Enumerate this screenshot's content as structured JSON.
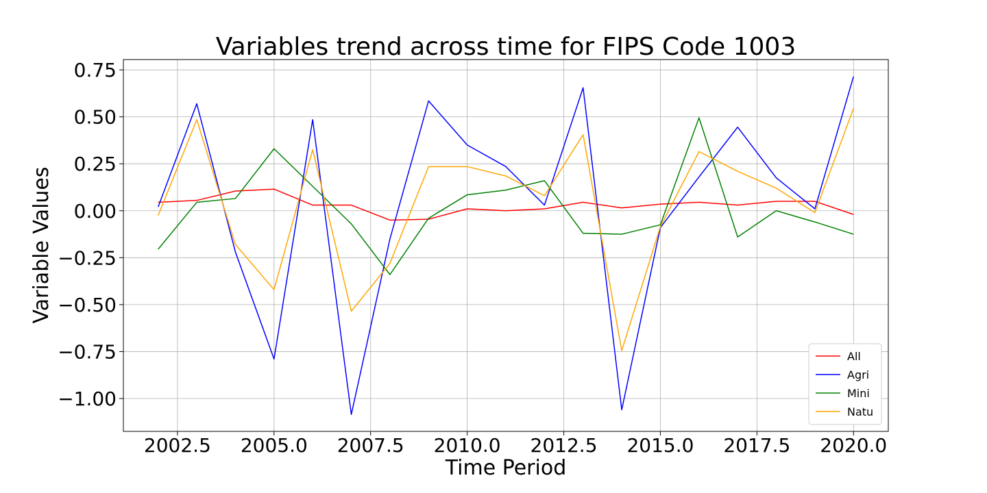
{
  "chart_data": {
    "type": "line",
    "title": "Variables trend across time for FIPS Code 1003",
    "xlabel": "Time Period",
    "ylabel": "Variable Values",
    "xlim": [
      2001.1,
      2020.9
    ],
    "ylim": [
      -1.175,
      0.805
    ],
    "xticks": [
      2002.5,
      2005.0,
      2007.5,
      2010.0,
      2012.5,
      2015.0,
      2017.5,
      2020.0
    ],
    "xtick_labels": [
      "2002.5",
      "2005.0",
      "2007.5",
      "2010.0",
      "2012.5",
      "2015.0",
      "2017.5",
      "2020.0"
    ],
    "yticks": [
      0.75,
      0.5,
      0.25,
      0.0,
      -0.25,
      -0.5,
      -0.75,
      -1.0
    ],
    "ytick_labels": [
      "0.75",
      "0.50",
      "0.25",
      "0.00",
      "−0.25",
      "−0.50",
      "−0.75",
      "−1.00"
    ],
    "grid": true,
    "legend_position": "bottom-right",
    "x": [
      2002,
      2003,
      2004,
      2005,
      2006,
      2007,
      2008,
      2009,
      2010,
      2011,
      2012,
      2013,
      2014,
      2015,
      2016,
      2017,
      2018,
      2019,
      2020
    ],
    "series": [
      {
        "name": "All",
        "color": "#ff0000",
        "values": [
          0.045,
          0.055,
          0.105,
          0.115,
          0.03,
          0.03,
          -0.05,
          -0.045,
          0.01,
          0.0,
          0.01,
          0.045,
          0.015,
          0.035,
          0.045,
          0.03,
          0.05,
          0.05,
          -0.02
        ]
      },
      {
        "name": "Agri",
        "color": "#0000ff",
        "values": [
          0.02,
          0.57,
          -0.22,
          -0.79,
          0.485,
          -1.085,
          -0.15,
          0.585,
          0.35,
          0.235,
          0.03,
          0.655,
          -1.06,
          -0.09,
          0.18,
          0.445,
          0.175,
          0.01,
          0.715
        ]
      },
      {
        "name": "Mini",
        "color": "#008000",
        "values": [
          -0.205,
          0.045,
          0.065,
          0.33,
          0.13,
          -0.07,
          -0.34,
          -0.04,
          0.085,
          0.11,
          0.16,
          -0.12,
          -0.125,
          -0.075,
          0.495,
          -0.14,
          0.0,
          -0.06,
          -0.125
        ]
      },
      {
        "name": "Natu",
        "color": "#ffa500",
        "values": [
          -0.025,
          0.485,
          -0.18,
          -0.42,
          0.325,
          -0.535,
          -0.28,
          0.235,
          0.235,
          0.185,
          0.08,
          0.405,
          -0.745,
          -0.085,
          0.315,
          0.21,
          0.12,
          -0.01,
          0.545
        ]
      }
    ]
  }
}
